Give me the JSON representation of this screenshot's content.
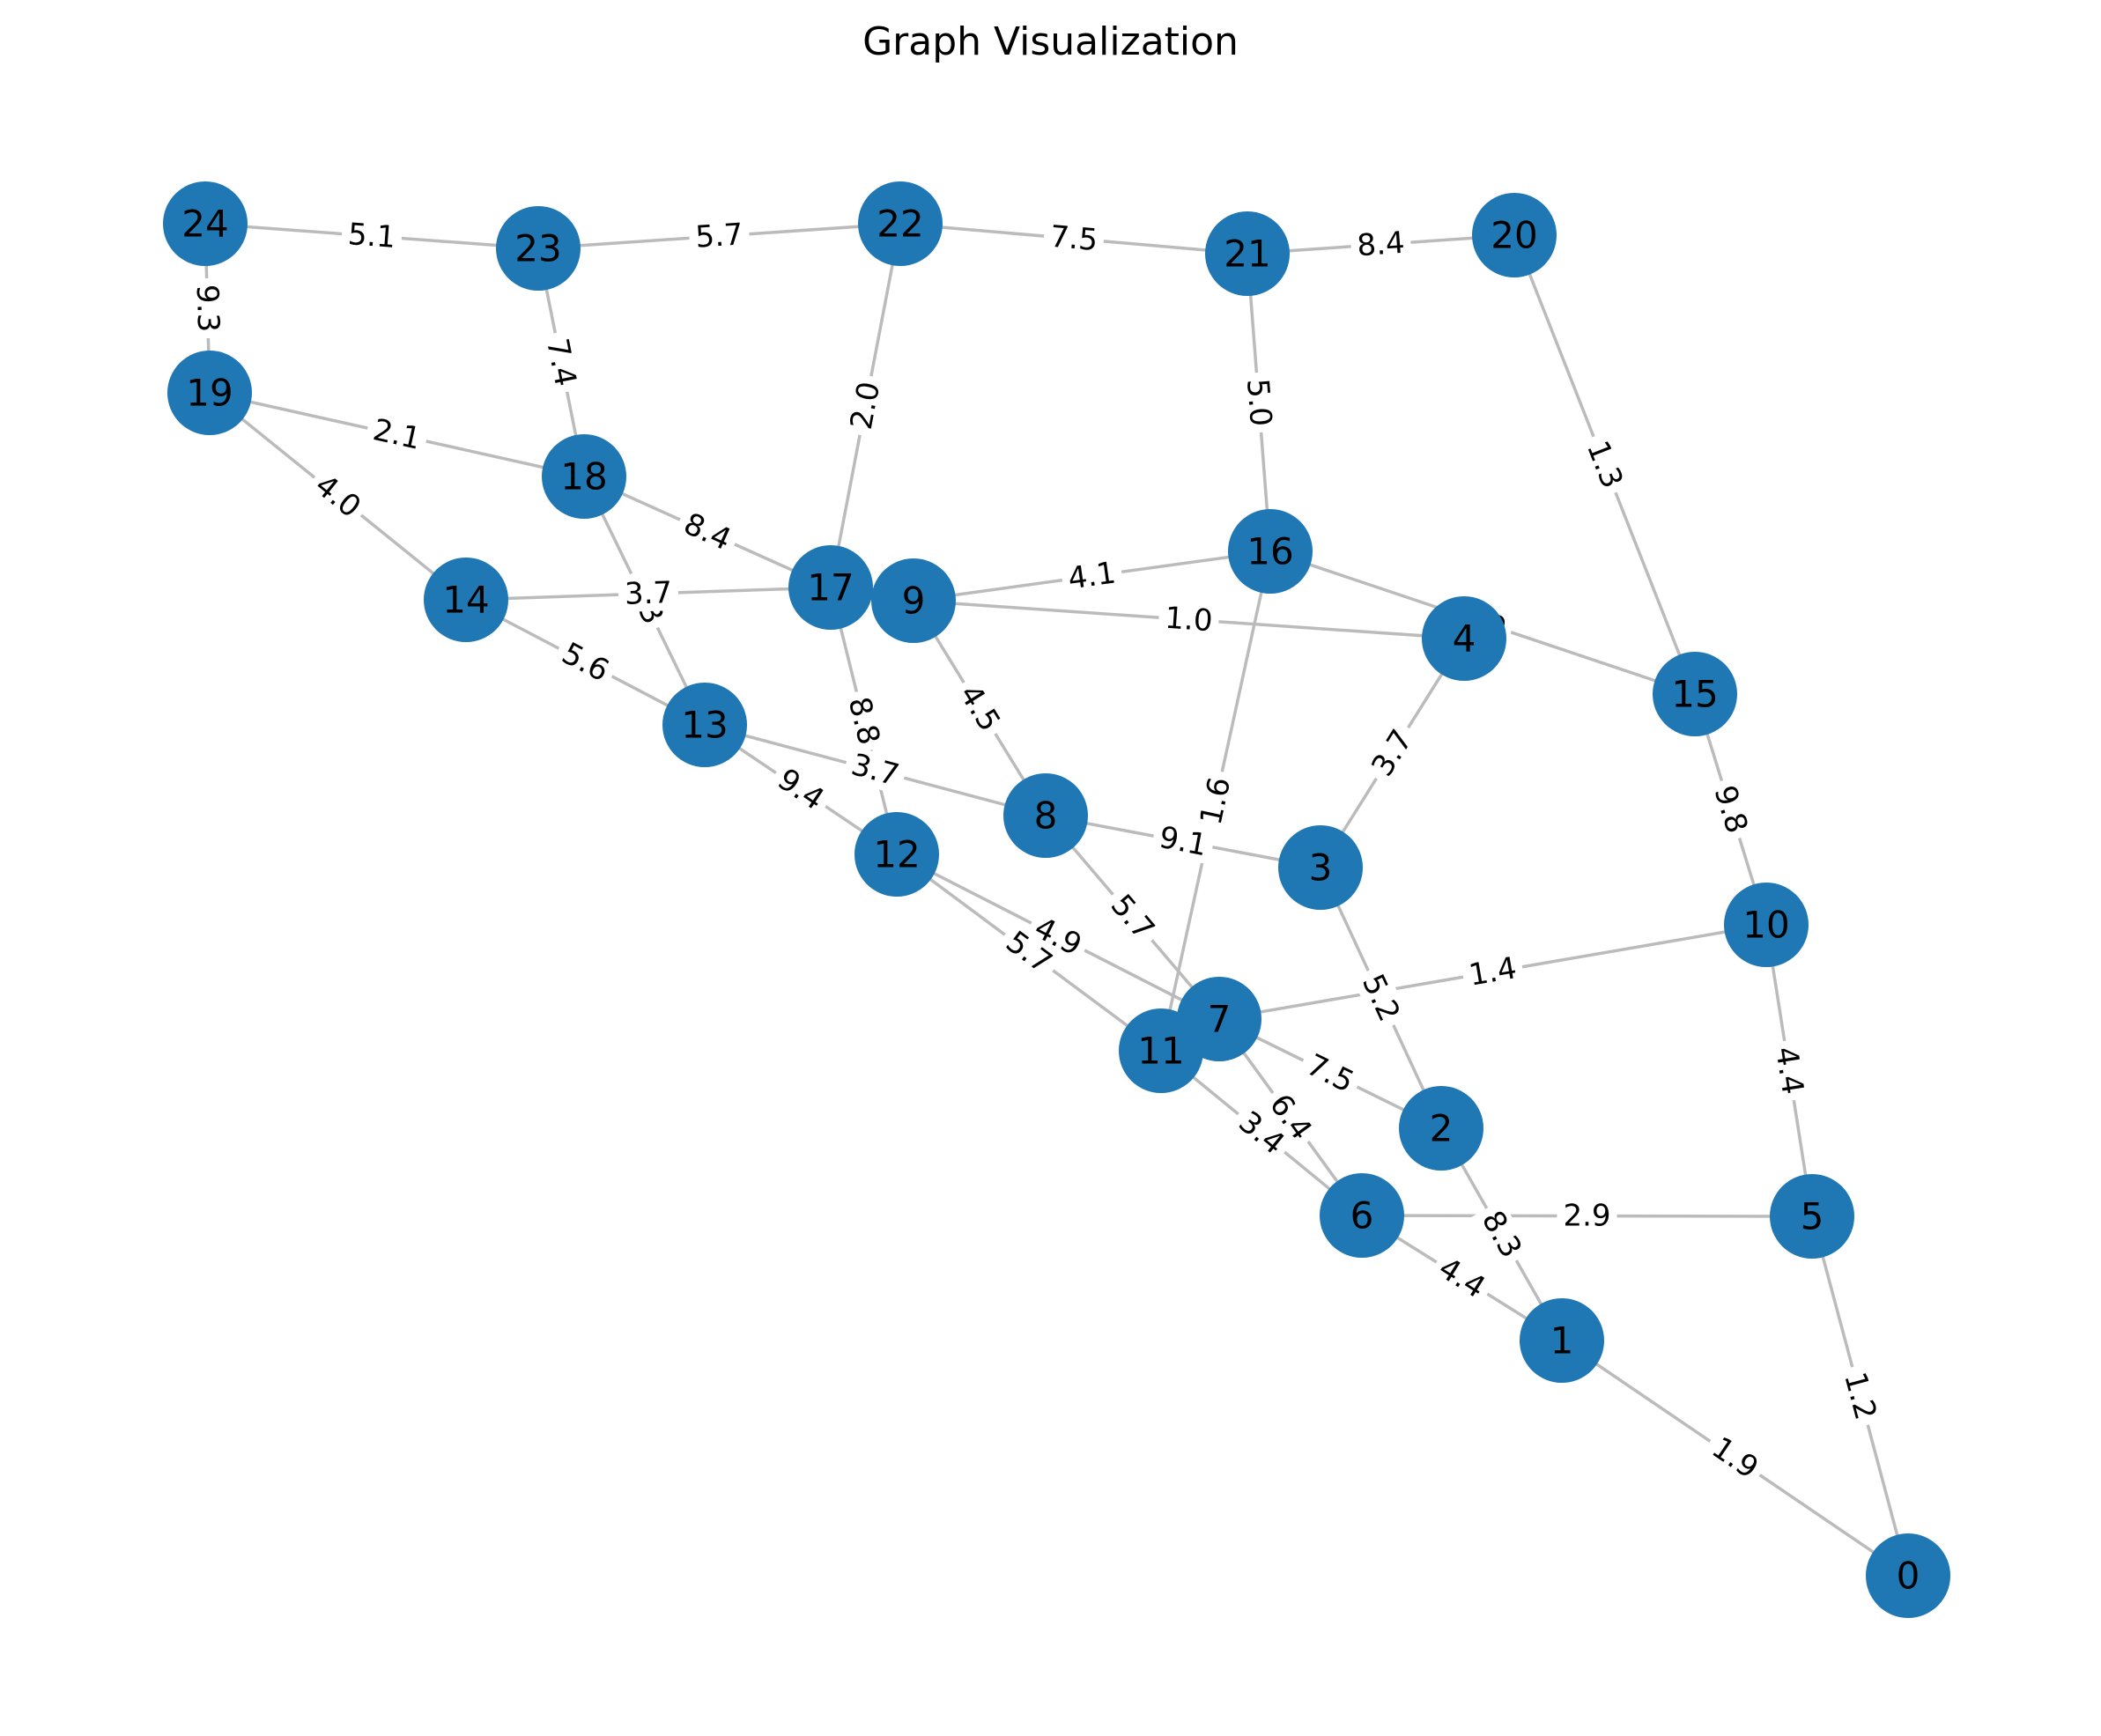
{
  "title": "Graph Visualization",
  "colors": {
    "node": "#1f77b4",
    "edge": "#bbbbbb",
    "label": "#000000"
  },
  "nodes": [
    {
      "id": "0",
      "label": "0"
    },
    {
      "id": "1",
      "label": "1"
    },
    {
      "id": "2",
      "label": "2"
    },
    {
      "id": "3",
      "label": "3"
    },
    {
      "id": "4",
      "label": "4"
    },
    {
      "id": "5",
      "label": "5"
    },
    {
      "id": "6",
      "label": "6"
    },
    {
      "id": "7",
      "label": "7"
    },
    {
      "id": "8",
      "label": "8"
    },
    {
      "id": "9",
      "label": "9"
    },
    {
      "id": "10",
      "label": "10"
    },
    {
      "id": "11",
      "label": "11"
    },
    {
      "id": "12",
      "label": "12"
    },
    {
      "id": "13",
      "label": "13"
    },
    {
      "id": "14",
      "label": "14"
    },
    {
      "id": "15",
      "label": "15"
    },
    {
      "id": "16",
      "label": "16"
    },
    {
      "id": "17",
      "label": "17"
    },
    {
      "id": "18",
      "label": "18"
    },
    {
      "id": "19",
      "label": "19"
    },
    {
      "id": "20",
      "label": "20"
    },
    {
      "id": "21",
      "label": "21"
    },
    {
      "id": "22",
      "label": "22"
    },
    {
      "id": "23",
      "label": "23"
    },
    {
      "id": "24",
      "label": "24"
    }
  ],
  "edges": [
    {
      "source": "24",
      "target": "23",
      "label": "5.1"
    },
    {
      "source": "23",
      "target": "22",
      "label": "5.7"
    },
    {
      "source": "22",
      "target": "21",
      "label": "7.5"
    },
    {
      "source": "21",
      "target": "20",
      "label": "8.4"
    },
    {
      "source": "24",
      "target": "19",
      "label": "9.3"
    },
    {
      "source": "23",
      "target": "18",
      "label": "7.4"
    },
    {
      "source": "22",
      "target": "17",
      "label": "2.0"
    },
    {
      "source": "21",
      "target": "16",
      "label": "5.0"
    },
    {
      "source": "20",
      "target": "15",
      "label": "1.3"
    },
    {
      "source": "19",
      "target": "18",
      "label": "2.1"
    },
    {
      "source": "19",
      "target": "14",
      "label": "4.0"
    },
    {
      "source": "18",
      "target": "17",
      "label": "8.4"
    },
    {
      "source": "18",
      "target": "13",
      "label": "6.3"
    },
    {
      "source": "14",
      "target": "17",
      "label": "3.7"
    },
    {
      "source": "14",
      "target": "13",
      "label": "5.6"
    },
    {
      "source": "16",
      "target": "9",
      "label": "4.1"
    },
    {
      "source": "16",
      "target": "15",
      "label": "2.9"
    },
    {
      "source": "16",
      "target": "11",
      "label": "1.6"
    },
    {
      "source": "9",
      "target": "4",
      "label": "1.0"
    },
    {
      "source": "9",
      "target": "8",
      "label": "4.5"
    },
    {
      "source": "17",
      "target": "12",
      "label": "8.8"
    },
    {
      "source": "13",
      "target": "8",
      "label": "3.7"
    },
    {
      "source": "13",
      "target": "12",
      "label": "9.4"
    },
    {
      "source": "4",
      "target": "3",
      "label": "3.7"
    },
    {
      "source": "15",
      "target": "10",
      "label": "9.8"
    },
    {
      "source": "8",
      "target": "3",
      "label": "9.1"
    },
    {
      "source": "8",
      "target": "7",
      "label": "5.7"
    },
    {
      "source": "12",
      "target": "7",
      "label": "4.9"
    },
    {
      "source": "12",
      "target": "11",
      "label": "5.7"
    },
    {
      "source": "3",
      "target": "2",
      "label": "5.2"
    },
    {
      "source": "10",
      "target": "7",
      "label": "1.4"
    },
    {
      "source": "10",
      "target": "5",
      "label": "4.4"
    },
    {
      "source": "7",
      "target": "2",
      "label": "7.5"
    },
    {
      "source": "7",
      "target": "6",
      "label": "6.4"
    },
    {
      "source": "11",
      "target": "6",
      "label": "3.4"
    },
    {
      "source": "6",
      "target": "5",
      "label": "2.9"
    },
    {
      "source": "6",
      "target": "1",
      "label": "4.4"
    },
    {
      "source": "2",
      "target": "1",
      "label": "8.3"
    },
    {
      "source": "1",
      "target": "0",
      "label": "1.9"
    },
    {
      "source": "5",
      "target": "0",
      "label": "1.2"
    }
  ]
}
